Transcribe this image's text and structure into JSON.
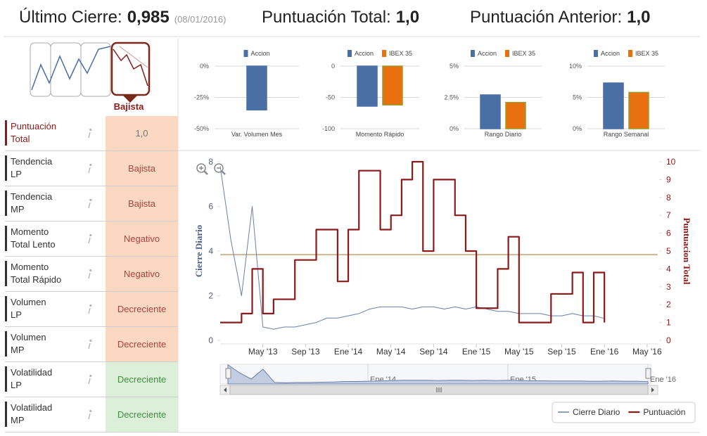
{
  "header": {
    "items": [
      {
        "label": "Último Cierre:",
        "value": "0,985",
        "note": "(08/01/2016)"
      },
      {
        "label": "Puntuación Total:",
        "value": "1,0"
      },
      {
        "label": "Puntuación Anterior:",
        "value": "1,0"
      }
    ]
  },
  "sidebar": {
    "trend_label": "Bajista",
    "rows": [
      {
        "label": [
          "Puntuación",
          "Total"
        ],
        "value": "1,0",
        "label_color": "#8b1a1a",
        "text_color": "#777777",
        "background": "#fbd8c2"
      },
      {
        "label": [
          "Tendencia",
          "LP"
        ],
        "value": "Bajista",
        "label_color": "#333333",
        "text_color": "#b0413e",
        "background": "#fbd8c2"
      },
      {
        "label": [
          "Tendencia",
          "MP"
        ],
        "value": "Bajista",
        "label_color": "#333333",
        "text_color": "#b0413e",
        "background": "#fbd8c2"
      },
      {
        "label": [
          "Momento",
          "Total Lento"
        ],
        "value": "Negativo",
        "label_color": "#333333",
        "text_color": "#b0413e",
        "background": "#fbd8c2"
      },
      {
        "label": [
          "Momento",
          "Total Rápido"
        ],
        "value": "Negativo",
        "label_color": "#333333",
        "text_color": "#b0413e",
        "background": "#fbd8c2"
      },
      {
        "label": [
          "Volumen",
          "LP"
        ],
        "value": "Decreciente",
        "label_color": "#333333",
        "text_color": "#b0413e",
        "background": "#fbd8c2"
      },
      {
        "label": [
          "Volumen",
          "MP"
        ],
        "value": "Decreciente",
        "label_color": "#333333",
        "text_color": "#b0413e",
        "background": "#fbd8c2"
      },
      {
        "label": [
          "Volatilidad",
          "LP"
        ],
        "value": "Decreciente",
        "label_color": "#333333",
        "text_color": "#3f8f3f",
        "background": "#dcefd8"
      },
      {
        "label": [
          "Volatilidad",
          "MP"
        ],
        "value": "Decreciente",
        "label_color": "#333333",
        "text_color": "#3f8f3f",
        "background": "#dcefd8"
      }
    ]
  },
  "chart_data": [
    {
      "type": "bar",
      "categories": [
        "Var. Volumen Mes"
      ],
      "series": [
        {
          "name": "Accion",
          "color": "#4a6fa5",
          "border": "#4a6fa5",
          "values": [
            -35
          ]
        }
      ],
      "ylim": [
        -50,
        0
      ],
      "yticks": [
        {
          "value": 0,
          "label": "0%"
        },
        {
          "value": -25,
          "label": "-25%"
        },
        {
          "value": -50,
          "label": "-50%"
        }
      ]
    },
    {
      "type": "bar",
      "categories": [
        "Momento Rápido"
      ],
      "series": [
        {
          "name": "Accion",
          "color": "#4a6fa5",
          "border": "#4a6fa5",
          "values": [
            -64
          ]
        },
        {
          "name": "IBEX 35",
          "color": "#e8700f",
          "border": "#9a9a2e",
          "values": [
            -62
          ]
        }
      ],
      "ylim": [
        -100,
        0
      ],
      "yticks": [
        0,
        -50,
        -100
      ]
    },
    {
      "type": "bar",
      "categories": [
        "Rango Diario"
      ],
      "series": [
        {
          "name": "Accion",
          "color": "#4a6fa5",
          "border": "#4a6fa5",
          "values": [
            2.7
          ]
        },
        {
          "name": "IBEX 35",
          "color": "#e8700f",
          "border": "#9a9a2e",
          "values": [
            2.1
          ]
        }
      ],
      "ylim": [
        0,
        5
      ],
      "yticks": [
        {
          "value": 0,
          "label": "0%"
        },
        {
          "value": 2.5,
          "label": "2.5%"
        },
        {
          "value": 5,
          "label": "5%"
        }
      ]
    },
    {
      "type": "bar",
      "categories": [
        "Rango Semanal"
      ],
      "series": [
        {
          "name": "Accion",
          "color": "#4a6fa5",
          "border": "#4a6fa5",
          "values": [
            7.3
          ]
        },
        {
          "name": "IBEX 35",
          "color": "#e8700f",
          "border": "#9a9a2e",
          "values": [
            5.8
          ]
        }
      ],
      "ylim": [
        0,
        10
      ],
      "yticks": [
        {
          "value": 0,
          "label": "0%"
        },
        {
          "value": 5,
          "label": "5%"
        },
        {
          "value": 10,
          "label": "10%"
        }
      ]
    },
    {
      "type": "line",
      "ylabel": "Cierre Diario",
      "y2label": "Puntuacion Total",
      "xlim": [
        "2013-01",
        "2016-06"
      ],
      "xticks": [
        {
          "value": "2013-05",
          "label": "May '13"
        },
        {
          "value": "2013-09",
          "label": "Sep '13"
        },
        {
          "value": "2014-01",
          "label": "Ene '14"
        },
        {
          "value": "2014-05",
          "label": "May '14"
        },
        {
          "value": "2014-09",
          "label": "Sep '14"
        },
        {
          "value": "2015-01",
          "label": "Ene '15"
        },
        {
          "value": "2015-05",
          "label": "May '15"
        },
        {
          "value": "2015-09",
          "label": "Sep '15"
        },
        {
          "value": "2016-01",
          "label": "Ene '16"
        },
        {
          "value": "2016-05",
          "label": "May '16"
        }
      ],
      "ylim": [
        0,
        8
      ],
      "yticks": [
        0,
        2,
        4,
        6,
        8
      ],
      "y2lim": [
        0,
        10
      ],
      "y2ticks": [
        0,
        1,
        2,
        3,
        4,
        5,
        6,
        7,
        8,
        9,
        10
      ],
      "plot_line": {
        "value": 4.8,
        "axis": "y2",
        "color": "#cdb894"
      },
      "series": [
        {
          "name": "Cierre Diario",
          "color": "#6b7fa8",
          "x": [
            "2013-01",
            "2013-02",
            "2013-03",
            "2013-04",
            "2013-05",
            "2013-06",
            "2013-07",
            "2013-08",
            "2013-09",
            "2013-10",
            "2013-11",
            "2013-12",
            "2014-01",
            "2014-02",
            "2014-03",
            "2014-04",
            "2014-05",
            "2014-06",
            "2014-07",
            "2014-08",
            "2014-09",
            "2014-10",
            "2014-11",
            "2014-12",
            "2015-01",
            "2015-02",
            "2015-03",
            "2015-04",
            "2015-05",
            "2015-06",
            "2015-07",
            "2015-08",
            "2015-09",
            "2015-10",
            "2015-11",
            "2015-12",
            "2016-01"
          ],
          "values": [
            7.8,
            4.5,
            2.0,
            6.0,
            0.6,
            0.5,
            0.6,
            0.6,
            0.7,
            0.8,
            1.0,
            1.0,
            1.1,
            1.2,
            1.4,
            1.5,
            1.5,
            1.5,
            1.4,
            1.5,
            1.5,
            1.4,
            1.5,
            1.4,
            1.5,
            1.4,
            1.3,
            1.3,
            1.2,
            1.2,
            1.2,
            1.1,
            1.1,
            1.2,
            1.1,
            1.1,
            0.985
          ]
        },
        {
          "name": "Puntuación",
          "color": "#8b1a1a",
          "axis": "y2",
          "step": true,
          "x": [
            "2013-01",
            "2013-03",
            "2013-04",
            "2013-05",
            "2013-06",
            "2013-08",
            "2013-10",
            "2013-12",
            "2014-01",
            "2014-02",
            "2014-04",
            "2014-05",
            "2014-06",
            "2014-07",
            "2014-08",
            "2014-09",
            "2014-11",
            "2014-12",
            "2015-01",
            "2015-03",
            "2015-04",
            "2015-05",
            "2015-08",
            "2015-10",
            "2015-11",
            "2015-12",
            "2016-01"
          ],
          "values": [
            1,
            1.5,
            4,
            1.5,
            2.3,
            4.5,
            6.2,
            3.3,
            6.2,
            9.5,
            6.2,
            7,
            9,
            10,
            5,
            9,
            7,
            5,
            1.8,
            4,
            5.8,
            1,
            2.6,
            3.8,
            1,
            3.8,
            1
          ]
        }
      ],
      "navigator": {
        "xlim": [
          "2013-01",
          "2016-01"
        ],
        "xticks": [
          {
            "value": "2014-01",
            "label": "Ene '14"
          },
          {
            "value": "2015-01",
            "label": "Ene '15"
          },
          {
            "value": "2016-01",
            "label": "Ene '16"
          }
        ]
      }
    }
  ]
}
